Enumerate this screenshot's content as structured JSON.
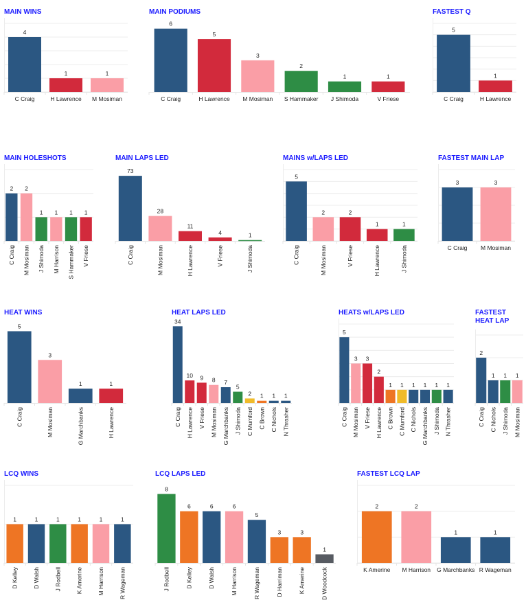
{
  "colors": {
    "navy": "#2b5782",
    "red": "#d22a3c",
    "pink": "#fa9ea6",
    "green": "#2e8d45",
    "orange": "#ee7524",
    "yellow": "#f0bb2a",
    "gray": "#575b62",
    "title": "#1a1aff",
    "grid": "#ececec"
  },
  "chart_data": [
    {
      "id": "main-wins",
      "type": "bar",
      "title": "MAIN WINS",
      "categories": [
        "C Craig",
        "H Lawrence",
        "M Mosiman"
      ],
      "values": [
        4,
        1,
        1
      ],
      "colors": [
        "navy",
        "red",
        "pink"
      ],
      "ylim": [
        0,
        5
      ],
      "grid": true,
      "xlabel_orientation": "horizontal"
    },
    {
      "id": "main-podiums",
      "type": "bar",
      "title": "MAIN PODIUMS",
      "categories": [
        "C Craig",
        "H Lawrence",
        "M Mosiman",
        "S Hammaker",
        "J Shimoda",
        "V Friese"
      ],
      "values": [
        6,
        5,
        3,
        2,
        1,
        1
      ],
      "colors": [
        "navy",
        "red",
        "pink",
        "green",
        "green",
        "red"
      ],
      "ylim": [
        0,
        6.5
      ],
      "grid": false,
      "xlabel_orientation": "horizontal"
    },
    {
      "id": "fastest-q",
      "type": "bar",
      "title": "FASTEST Q",
      "categories": [
        "C Craig",
        "H Lawrence"
      ],
      "values": [
        5,
        1
      ],
      "colors": [
        "navy",
        "red"
      ],
      "ylim": [
        0,
        6
      ],
      "grid": true,
      "xlabel_orientation": "horizontal"
    },
    {
      "id": "main-holeshots",
      "type": "bar",
      "title": "MAIN HOLESHOTS",
      "categories": [
        "C Craig",
        "M Mosiman",
        "J Shimoda",
        "M Harrison",
        "S Hammaker",
        "V Friese"
      ],
      "values": [
        2,
        2,
        1,
        1,
        1,
        1
      ],
      "colors": [
        "navy",
        "pink",
        "green",
        "pink",
        "green",
        "red"
      ],
      "ylim": [
        0,
        3
      ],
      "grid": true,
      "xlabel_orientation": "vertical"
    },
    {
      "id": "main-laps-led",
      "type": "bar",
      "title": "MAIN LAPS LED",
      "categories": [
        "C Craig",
        "M Mosiman",
        "H Lawrence",
        "V Friese",
        "J Shimoda"
      ],
      "values": [
        73,
        28,
        11,
        4,
        1
      ],
      "colors": [
        "navy",
        "pink",
        "red",
        "red",
        "green"
      ],
      "ylim": [
        0,
        80
      ],
      "grid": false,
      "xlabel_orientation": "vertical"
    },
    {
      "id": "mains-w-laps-led",
      "type": "bar",
      "title": "MAINS w/LAPS LED",
      "categories": [
        "C Craig",
        "M Mosiman",
        "V Friese",
        "H Lawrence",
        "J Shimoda"
      ],
      "values": [
        5,
        2,
        2,
        1,
        1
      ],
      "colors": [
        "navy",
        "pink",
        "red",
        "red",
        "green"
      ],
      "ylim": [
        0,
        6
      ],
      "grid": true,
      "xlabel_orientation": "vertical"
    },
    {
      "id": "fastest-main-lap",
      "type": "bar",
      "title": "FASTEST MAIN LAP",
      "categories": [
        "C Craig",
        "M Mosiman"
      ],
      "values": [
        3,
        3
      ],
      "colors": [
        "navy",
        "pink"
      ],
      "ylim": [
        0,
        4
      ],
      "grid": true,
      "xlabel_orientation": "horizontal"
    },
    {
      "id": "heat-wins",
      "type": "bar",
      "title": "HEAT WINS",
      "categories": [
        "C Craig",
        "M Mosiman",
        "G Marchbanks",
        "H Lawrence"
      ],
      "values": [
        5,
        3,
        1,
        1
      ],
      "colors": [
        "navy",
        "pink",
        "navy",
        "red"
      ],
      "ylim": [
        0,
        5.5
      ],
      "grid": false,
      "xlabel_orientation": "vertical"
    },
    {
      "id": "heat-laps-led",
      "type": "bar",
      "title": "HEAT LAPS LED",
      "categories": [
        "C Craig",
        "H Lawrence",
        "V Friese",
        "M Mosiman",
        "G Marchbanks",
        "J Shimoda",
        "C Mumford",
        "C Brown",
        "C Nichols",
        "N Thrasher"
      ],
      "values": [
        34,
        10,
        9,
        8,
        7,
        5,
        2,
        1,
        1,
        1
      ],
      "colors": [
        "navy",
        "red",
        "red",
        "pink",
        "navy",
        "green",
        "yellow",
        "orange",
        "navy",
        "navy"
      ],
      "ylim": [
        0,
        35
      ],
      "grid": false,
      "xlabel_orientation": "vertical"
    },
    {
      "id": "heats-w-laps-led",
      "type": "bar",
      "title": "HEATS w/LAPS LED",
      "categories": [
        "C Craig",
        "M Mosiman",
        "V Friese",
        "H Lawrence",
        "C Brown",
        "C Mumford",
        "C Nichols",
        "G Marchbanks",
        "J Shimoda",
        "N Thrasher"
      ],
      "values": [
        5,
        3,
        3,
        2,
        1,
        1,
        1,
        1,
        1,
        1
      ],
      "colors": [
        "navy",
        "pink",
        "red",
        "red",
        "orange",
        "yellow",
        "navy",
        "navy",
        "green",
        "navy"
      ],
      "ylim": [
        0,
        6
      ],
      "grid": true,
      "xlabel_orientation": "vertical"
    },
    {
      "id": "fastest-heat-lap",
      "type": "bar",
      "title": "FASTEST\nHEAT LAP",
      "categories": [
        "C Craig",
        "C Nichols",
        "J Shimoda",
        "M Mosiman"
      ],
      "values": [
        2,
        1,
        1,
        1
      ],
      "colors": [
        "navy",
        "navy",
        "green",
        "pink"
      ],
      "ylim": [
        0,
        3
      ],
      "grid": true,
      "xlabel_orientation": "vertical"
    },
    {
      "id": "lcq-wins",
      "type": "bar",
      "title": "LCQ WINS",
      "categories": [
        "D Kelley",
        "D Walsh",
        "J Rodbell",
        "K Amerine",
        "M Harrison",
        "R Wageman"
      ],
      "values": [
        1,
        1,
        1,
        1,
        1,
        1
      ],
      "colors": [
        "orange",
        "navy",
        "green",
        "orange",
        "pink",
        "navy"
      ],
      "ylim": [
        0,
        2
      ],
      "grid": true,
      "xlabel_orientation": "vertical"
    },
    {
      "id": "lcq-laps-led",
      "type": "bar",
      "title": "LCQ LAPS LED",
      "categories": [
        "J Rodbell",
        "D Kelley",
        "D Walsh",
        "M Harrison",
        "R Wageman",
        "D Harriman",
        "K Amerine",
        "D Woodcock"
      ],
      "values": [
        8,
        6,
        6,
        6,
        5,
        3,
        3,
        1
      ],
      "colors": [
        "green",
        "orange",
        "navy",
        "pink",
        "navy",
        "orange",
        "orange",
        "gray"
      ],
      "ylim": [
        0,
        9
      ],
      "grid": false,
      "xlabel_orientation": "vertical"
    },
    {
      "id": "fastest-lcq-lap",
      "type": "bar",
      "title": "FASTEST LCQ LAP",
      "categories": [
        "K Amerine",
        "M Harrison",
        "G Marchbanks",
        "R Wageman"
      ],
      "values": [
        2,
        2,
        1,
        1
      ],
      "colors": [
        "orange",
        "pink",
        "navy",
        "navy"
      ],
      "ylim": [
        0,
        3
      ],
      "grid": true,
      "xlabel_orientation": "horizontal"
    }
  ]
}
